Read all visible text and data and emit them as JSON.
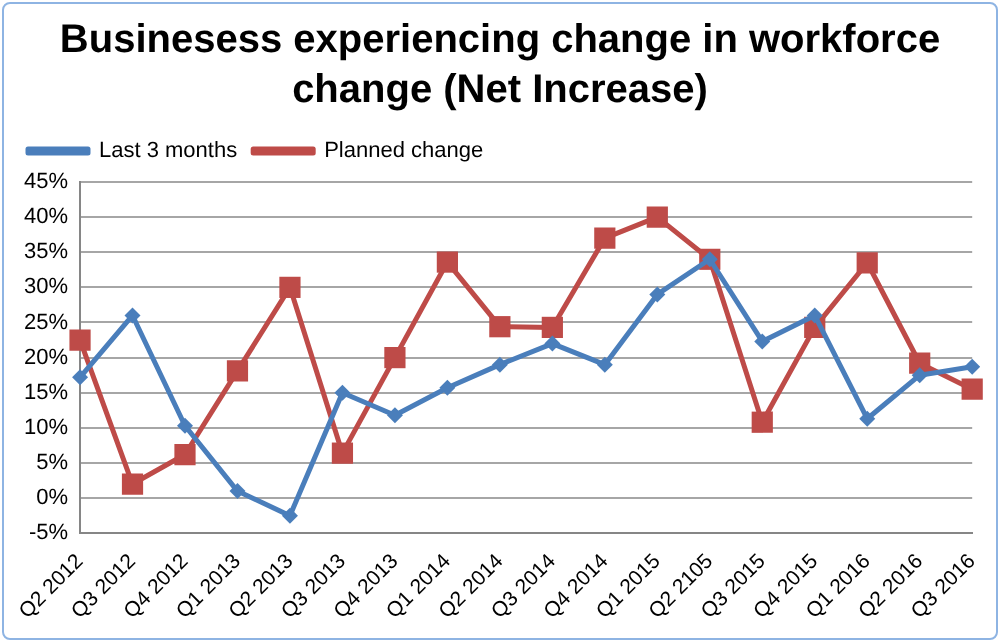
{
  "chart_data": {
    "type": "line",
    "title": "Businesess experiencing change in workforce change (Net Increase)",
    "categories": [
      "Q2 2012",
      "Q3 2012",
      "Q4 2012",
      "Q1 2013",
      "Q2 2013",
      "Q3 2013",
      "Q4 2013",
      "Q1 2014",
      "Q2 2014",
      "Q3 2014",
      "Q4 2014",
      "Q1 2015",
      "Q2 2105",
      "Q3 2015",
      "Q4 2015",
      "Q1 2016",
      "Q2 2016",
      "Q3 2016"
    ],
    "series": [
      {
        "name": "Last 3 months",
        "color": "#4a7ebb",
        "marker": "diamond",
        "values": [
          17.2,
          26,
          10.3,
          1,
          -2.5,
          15,
          11.8,
          15.7,
          19,
          22,
          19,
          29,
          34,
          22.3,
          26,
          11.3,
          17.5,
          18.7
        ]
      },
      {
        "name": "Planned change",
        "color": "#be4b48",
        "marker": "square",
        "values": [
          22.5,
          2,
          6.2,
          18.1,
          30,
          6.4,
          20,
          33.6,
          24.4,
          24.3,
          37,
          40,
          34,
          10.8,
          24.3,
          33.5,
          19.2,
          15.5
        ]
      }
    ],
    "ylim": [
      -5,
      45
    ],
    "yticks": [
      {
        "value": -5,
        "label": "-5%"
      },
      {
        "value": 0,
        "label": "0%"
      },
      {
        "value": 5,
        "label": "5%"
      },
      {
        "value": 10,
        "label": "10%"
      },
      {
        "value": 15,
        "label": "15%"
      },
      {
        "value": 20,
        "label": "20%"
      },
      {
        "value": 25,
        "label": "25%"
      },
      {
        "value": 30,
        "label": "30%"
      },
      {
        "value": 35,
        "label": "35%"
      },
      {
        "value": 40,
        "label": "40%"
      },
      {
        "value": 45,
        "label": "45%"
      }
    ],
    "grid": "y",
    "legend": "top left",
    "line_style": "solid"
  }
}
